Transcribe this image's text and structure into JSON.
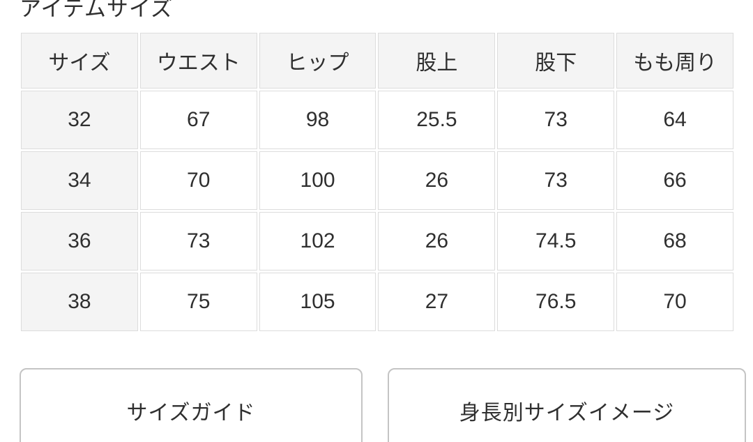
{
  "page": {
    "title": "アイテムサイズ"
  },
  "size_table": {
    "columns": [
      "サイズ",
      "ウエスト",
      "ヒップ",
      "股上",
      "股下",
      "もも周り"
    ],
    "rows": [
      [
        "32",
        "67",
        "98",
        "25.5",
        "73",
        "64"
      ],
      [
        "34",
        "70",
        "100",
        "26",
        "73",
        "66"
      ],
      [
        "36",
        "73",
        "102",
        "26",
        "74.5",
        "68"
      ],
      [
        "38",
        "75",
        "105",
        "27",
        "76.5",
        "70"
      ]
    ]
  },
  "buttons": {
    "size_guide_label": "サイズガイド",
    "height_size_image_label": "身長別サイズイメージ"
  },
  "colors": {
    "text": "#2f2f2f",
    "header_bg": "#f4f4f4",
    "cell_border": "#dcdcdc",
    "button_border": "#c4c4c4",
    "page_bg": "#ffffff"
  }
}
